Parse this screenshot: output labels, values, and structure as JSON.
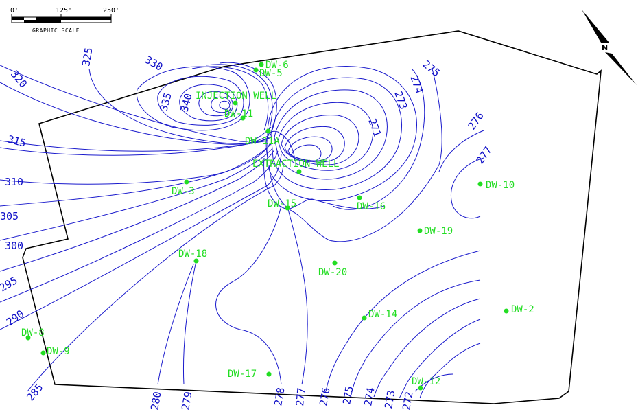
{
  "scale": {
    "ticks": [
      "0'",
      "125'",
      "250'"
    ],
    "title": "GRAPHIC SCALE"
  },
  "north_arrow": {
    "label": "N"
  },
  "contour_labels": [
    "340",
    "335",
    "330",
    "325",
    "320",
    "315",
    "310",
    "305",
    "300",
    "295",
    "290",
    "285",
    "280",
    "279",
    "278",
    "277",
    "276",
    "275",
    "274",
    "273",
    "272",
    "271",
    "273",
    "274",
    "275",
    "276",
    "277"
  ],
  "wells": [
    {
      "label": "DW-6"
    },
    {
      "label": "DW-5"
    },
    {
      "label": "INJECTION WELL"
    },
    {
      "label": "DW-11"
    },
    {
      "label": "DW-11A"
    },
    {
      "label": "EXTRACTION WELL"
    },
    {
      "label": "DW-3"
    },
    {
      "label": "DW-15"
    },
    {
      "label": "DW-16"
    },
    {
      "label": "DW-10"
    },
    {
      "label": "DW-19"
    },
    {
      "label": "DW-18"
    },
    {
      "label": "DW-20"
    },
    {
      "label": "DW-2"
    },
    {
      "label": "DW-14"
    },
    {
      "label": "DW-8"
    },
    {
      "label": "DW-9"
    },
    {
      "label": "DW-17"
    },
    {
      "label": "DW-12"
    }
  ],
  "colors": {
    "contour": "#1a1acc",
    "well": "#22dd22",
    "boundary": "#000000"
  }
}
